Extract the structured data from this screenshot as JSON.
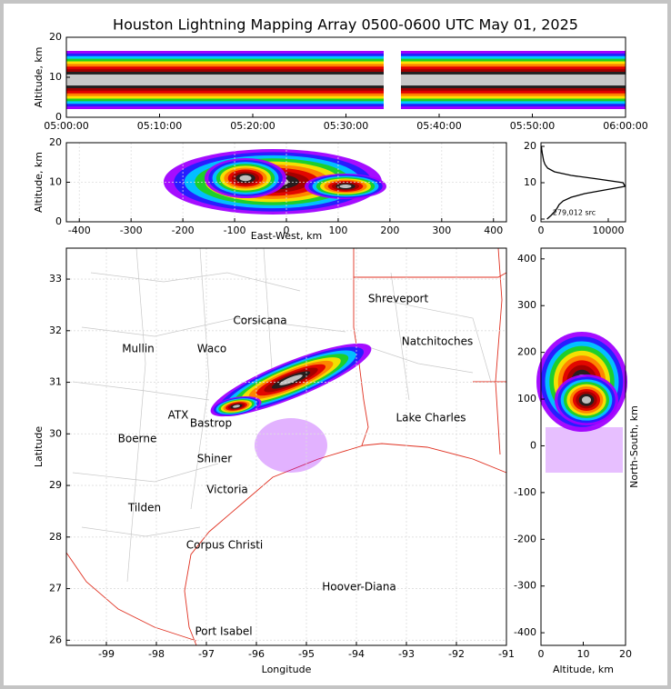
{
  "chart_data": [
    {
      "type": "density",
      "title": "Houston Lightning Mapping Array 0500-0600 UTC May 01, 2025",
      "ylabel": "Altitude, km",
      "xlim": [
        0,
        60
      ],
      "xticks": [
        {
          "value": 0,
          "label": "05:00:00"
        },
        {
          "value": 10,
          "label": "05:10:00"
        },
        {
          "value": 20,
          "label": "05:20:00"
        },
        {
          "value": 30,
          "label": "05:30:00"
        },
        {
          "value": 40,
          "label": "05:40:00"
        },
        {
          "value": 50,
          "label": "05:50:00"
        },
        {
          "value": 60,
          "label": "06:00:00"
        }
      ],
      "ylim": [
        0,
        20
      ],
      "yticks": [
        0,
        10,
        20
      ]
    },
    {
      "type": "density",
      "xlabel": "East-West, km",
      "ylabel": "Altitude, km",
      "xlim": [
        -425,
        425
      ],
      "xticks": [
        -400,
        -300,
        -200,
        -100,
        0,
        100,
        200,
        300,
        400
      ],
      "ylim": [
        0,
        20
      ],
      "yticks": [
        0,
        10,
        20
      ],
      "grid": true
    },
    {
      "type": "line",
      "annotation": "279,012 src",
      "color": "#000000",
      "y": [
        0,
        1,
        2,
        3,
        4,
        5,
        6,
        7,
        8,
        9,
        10,
        11,
        12,
        13,
        14,
        15,
        16,
        17,
        18,
        19,
        20
      ],
      "values": [
        900,
        1500,
        2000,
        2400,
        2700,
        3300,
        4500,
        6500,
        9500,
        12500,
        12200,
        8500,
        4500,
        2000,
        1000,
        600,
        400,
        300,
        200,
        120,
        60
      ],
      "xlim": [
        0,
        12570
      ],
      "xticks": [
        0,
        10000
      ],
      "ylim": [
        -0.75,
        21
      ],
      "yticks": [
        0,
        10,
        20
      ]
    },
    {
      "type": "map",
      "xlabel": "Longitude",
      "ylabel": "Latitude",
      "xlim": [
        -99.8,
        -91
      ],
      "xticks": [
        -99,
        -98,
        -97,
        -96,
        -95,
        -94,
        -93,
        -92,
        -91
      ],
      "ylim": [
        25.9,
        33.6
      ],
      "yticks": [
        26,
        27,
        28,
        29,
        30,
        31,
        32,
        33
      ],
      "grid": true,
      "labels": [
        {
          "text": "Shreveport",
          "color": "#000000"
        },
        {
          "text": "Corsicana",
          "color": "#000000"
        },
        {
          "text": "Mullin",
          "color": "#f08040"
        },
        {
          "text": "Waco",
          "color": "#000000"
        },
        {
          "text": "Natchitoches",
          "color": "#000000"
        },
        {
          "text": "ATX",
          "color": "#f08040"
        },
        {
          "text": "Bastrop",
          "color": "#000000"
        },
        {
          "text": "Lake Charles",
          "color": "#000000"
        },
        {
          "text": "Boerne",
          "color": "#000000"
        },
        {
          "text": "Shiner",
          "color": "#000000"
        },
        {
          "text": "Victoria",
          "color": "#000000"
        },
        {
          "text": "Tilden",
          "color": "#000000"
        },
        {
          "text": "Corpus Christi",
          "color": "#000000"
        },
        {
          "text": "Hoover-Diana",
          "color": "#2020e0"
        },
        {
          "text": "Port Isabel",
          "color": "#000000"
        }
      ]
    },
    {
      "type": "density",
      "xlabel": "Altitude, km",
      "ylabel": "North-South, km",
      "xlim": [
        0,
        20
      ],
      "xticks": [
        0,
        10,
        20
      ],
      "ylim": [
        -427,
        423
      ],
      "yticks": [
        -400,
        -300,
        -200,
        -100,
        0,
        100,
        200,
        300,
        400
      ]
    }
  ]
}
